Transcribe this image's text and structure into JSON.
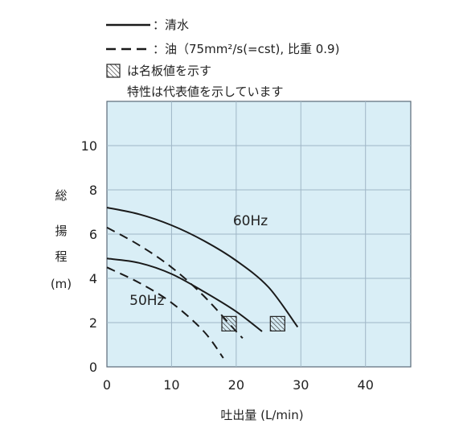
{
  "legend": {
    "solid_label": "：清水",
    "dashed_label": "：油（75mm²/s(=cst), 比重 0.9)",
    "hatch_label": "は名板値を示す",
    "note": "特性は代表値を示しています"
  },
  "colors": {
    "plot_background": "#d9eef6",
    "grid": "#9fb6c6",
    "curve": "#1a1a1a"
  },
  "chart_data": {
    "type": "line",
    "xlabel": "吐出量 (L/min)",
    "ylabel_chars": [
      "総",
      "揚",
      "程",
      "(m)"
    ],
    "xlim": [
      0,
      47
    ],
    "ylim": [
      0,
      12
    ],
    "x_ticks": [
      "0",
      "10",
      "20",
      "30",
      "40"
    ],
    "y_ticks": [
      "0",
      "2",
      "4",
      "6",
      "8",
      "10"
    ],
    "grid": true,
    "series": [
      {
        "style": "solid",
        "points": [
          [
            0,
            7.2
          ],
          [
            5,
            6.9
          ],
          [
            10,
            6.4
          ],
          [
            15,
            5.7
          ],
          [
            20,
            4.8
          ],
          [
            25,
            3.6
          ],
          [
            29.5,
            1.8
          ]
        ]
      },
      {
        "style": "dashed",
        "points": [
          [
            0,
            6.3
          ],
          [
            5,
            5.5
          ],
          [
            10,
            4.5
          ],
          [
            15,
            3.2
          ],
          [
            20,
            1.6
          ],
          [
            21,
            1.3
          ]
        ]
      },
      {
        "style": "solid",
        "points": [
          [
            0,
            4.9
          ],
          [
            5,
            4.7
          ],
          [
            10,
            4.2
          ],
          [
            15,
            3.4
          ],
          [
            20,
            2.5
          ],
          [
            24,
            1.6
          ]
        ]
      },
      {
        "style": "dashed",
        "points": [
          [
            0,
            4.5
          ],
          [
            5,
            3.8
          ],
          [
            10,
            2.9
          ],
          [
            15,
            1.6
          ],
          [
            18,
            0.4
          ]
        ]
      }
    ],
    "curve_labels": [
      {
        "text": "60Hz",
        "x": 19.5,
        "y": 6.4
      },
      {
        "text": "50Hz",
        "x": 3.5,
        "y": 2.8
      }
    ],
    "rating_points": [
      {
        "x": 18.9,
        "y": 1.95
      },
      {
        "x": 26.4,
        "y": 1.95
      }
    ]
  }
}
